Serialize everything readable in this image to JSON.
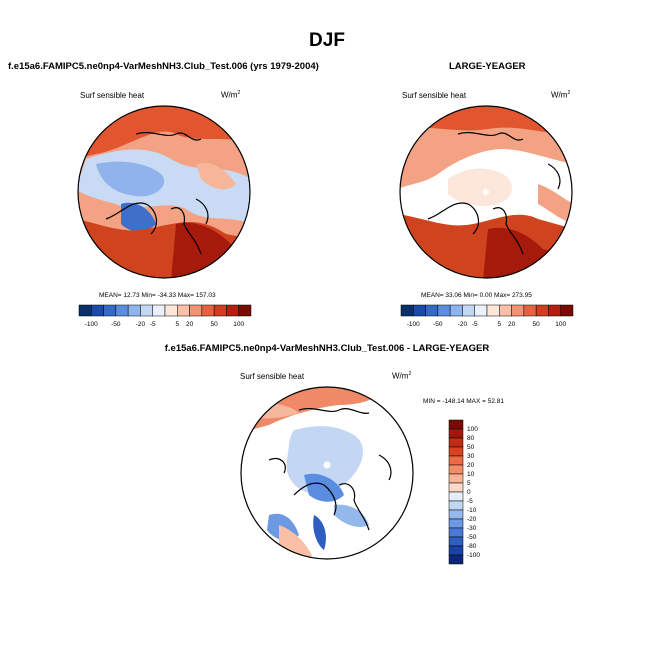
{
  "figure": {
    "title": "DJF"
  },
  "panels": [
    {
      "title": "f.e15a6.FAMIPC5.ne0np4-VarMeshNH3.Club_Test.006 (yrs 1979-2004)",
      "variable": "Surf sensible heat",
      "units_base": "W/m",
      "units_exp": "2",
      "stats": {
        "mean_label": "MEAN=",
        "mean": "12.73",
        "min_label": "Min=",
        "min": "-34.33",
        "max_label": "Max=",
        "max": "157.03"
      },
      "colorbar_labels": [
        "-100",
        "-50",
        "-20",
        "-5",
        "5",
        "20",
        "50",
        "100"
      ]
    },
    {
      "title": "LARGE-YEAGER",
      "variable": "Surf sensible heat",
      "units_base": "W/m",
      "units_exp": "2",
      "stats": {
        "mean_label": "MEAN=",
        "mean": "33.06",
        "min_label": "Min=",
        "min": "0.00",
        "max_label": "Max=",
        "max": "273.95"
      },
      "colorbar_labels": [
        "-100",
        "-50",
        "-20",
        "-5",
        "5",
        "20",
        "50",
        "100"
      ]
    },
    {
      "title": "f.e15a6.FAMIPC5.ne0np4-VarMeshNH3.Club_Test.006 - LARGE-YEAGER",
      "variable": "Surf sensible heat",
      "units_base": "W/m",
      "units_exp": "2",
      "minmax": {
        "min_label": "MIN =",
        "min": "-148.14",
        "max_label": "MAX =",
        "max": "52.81"
      },
      "colorbar_labels": [
        "100",
        "80",
        "50",
        "30",
        "20",
        "10",
        "5",
        "0",
        "-5",
        "-10",
        "-20",
        "-30",
        "-50",
        "-80",
        "-100"
      ]
    }
  ],
  "colors": {
    "diverging_14": [
      "#08306b",
      "#1a4ba8",
      "#3569c8",
      "#5a8de0",
      "#8eb4ef",
      "#c3d7f5",
      "#eaf1fb",
      "#fde6da",
      "#f9c0a6",
      "#f29473",
      "#e4623f",
      "#d13d1f",
      "#b2210f",
      "#7a0a04"
    ],
    "diverging_16": [
      "#7a0a04",
      "#a1180b",
      "#c22a14",
      "#d9411f",
      "#ec6a44",
      "#f58d69",
      "#f9b495",
      "#fcd9c6",
      "#e6eefa",
      "#c0d6f3",
      "#94b8ec",
      "#6c99e2",
      "#4a7bd4",
      "#2f5ec0",
      "#1a43a3",
      "#08267a"
    ]
  },
  "chart_data": [
    {
      "type": "heatmap",
      "projection": "north-polar-stereographic",
      "title": "f.e15a6.FAMIPC5.ne0np4-VarMeshNH3.Club_Test.006 (yrs 1979-2004)",
      "variable": "Surf sensible heat",
      "units": "W/m2",
      "mean": 12.73,
      "min": -34.33,
      "max": 157.03,
      "contour_levels": [
        -100,
        -50,
        -20,
        -5,
        5,
        20,
        50,
        100
      ]
    },
    {
      "type": "heatmap",
      "projection": "north-polar-stereographic",
      "title": "LARGE-YEAGER",
      "variable": "Surf sensible heat",
      "units": "W/m2",
      "mean": 33.06,
      "min": 0.0,
      "max": 273.95,
      "contour_levels": [
        -100,
        -50,
        -20,
        -5,
        5,
        20,
        50,
        100
      ]
    },
    {
      "type": "heatmap",
      "projection": "north-polar-stereographic",
      "title": "f.e15a6.FAMIPC5.ne0np4-VarMeshNH3.Club_Test.006 - LARGE-YEAGER",
      "variable": "Surf sensible heat",
      "units": "W/m2",
      "min": -148.14,
      "max": 52.81,
      "contour_levels": [
        -100,
        -80,
        -50,
        -30,
        -20,
        -10,
        -5,
        0,
        5,
        10,
        20,
        30,
        50,
        80,
        100
      ]
    }
  ]
}
